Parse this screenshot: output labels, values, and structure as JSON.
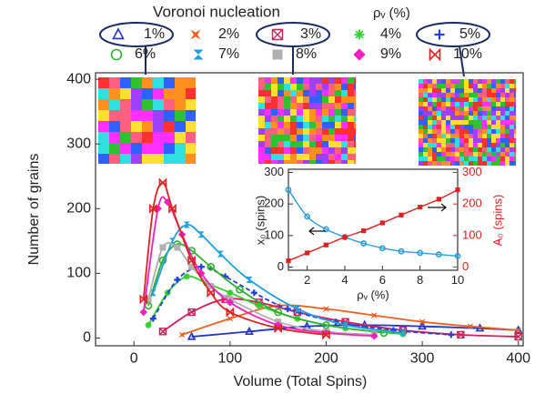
{
  "chart_data": [
    {
      "type": "line",
      "legend_title": "Voronoi nucleation",
      "legend_unit": "ρᵥ (%)",
      "x_label": "Volume (Total Spins)",
      "y_label": "Number of grains",
      "xlim": [
        -40,
        405
      ],
      "xticks": [
        0,
        100,
        200,
        300,
        400
      ],
      "ylim": [
        -12,
        410
      ],
      "yticks": [
        0,
        100,
        200,
        300,
        400
      ],
      "series": [
        {
          "name": "1%",
          "color": "#2233c8",
          "marker": "triangle",
          "x": [
            60,
            120,
            180,
            240,
            300,
            360,
            400
          ],
          "values": [
            2,
            10,
            18,
            20,
            18,
            15,
            12
          ]
        },
        {
          "name": "2%",
          "color": "#f06020",
          "marker": "star",
          "x": [
            50,
            100,
            150,
            200,
            250,
            300,
            350,
            400
          ],
          "values": [
            5,
            30,
            50,
            45,
            35,
            25,
            18,
            12
          ]
        },
        {
          "name": "3%",
          "color": "#d0205a",
          "marker": "boxx",
          "x": [
            30,
            60,
            95,
            130,
            170,
            220,
            280,
            340,
            400
          ],
          "values": [
            10,
            40,
            60,
            55,
            40,
            25,
            12,
            5,
            2
          ]
        },
        {
          "name": "4%",
          "color": "#30d030",
          "marker": "asterisk",
          "x": [
            15,
            35,
            55,
            75,
            100,
            130,
            170,
            220,
            280
          ],
          "values": [
            20,
            70,
            95,
            85,
            70,
            50,
            30,
            15,
            6
          ]
        },
        {
          "name": "5%",
          "color": "#2040e0",
          "marker": "plus",
          "dashed": true,
          "x": [
            20,
            45,
            70,
            95,
            125,
            160,
            210,
            270,
            330
          ],
          "values": [
            30,
            90,
            110,
            95,
            70,
            45,
            25,
            12,
            5
          ]
        },
        {
          "name": "6%",
          "color": "#30b030",
          "marker": "circle",
          "x": [
            15,
            30,
            45,
            60,
            80,
            110,
            150,
            200,
            260
          ],
          "values": [
            50,
            120,
            145,
            135,
            110,
            75,
            40,
            20,
            8
          ]
        },
        {
          "name": "7%",
          "color": "#20a0e0",
          "marker": "hourglass",
          "x": [
            20,
            40,
            55,
            70,
            90,
            120,
            170,
            220,
            280
          ],
          "values": [
            70,
            150,
            175,
            160,
            130,
            90,
            45,
            20,
            8
          ]
        },
        {
          "name": "8%",
          "color": "#b0b0b0",
          "marker": "square",
          "x": [
            15,
            30,
            45,
            60,
            80,
            100,
            150,
            200,
            250
          ],
          "values": [
            60,
            140,
            140,
            110,
            80,
            60,
            25,
            10,
            5
          ]
        },
        {
          "name": "9%",
          "color": "#f020c0",
          "marker": "diamond",
          "x": [
            10,
            25,
            35,
            50,
            70,
            100,
            150,
            200,
            250
          ],
          "values": [
            40,
            200,
            210,
            160,
            100,
            55,
            20,
            8,
            3
          ]
        },
        {
          "name": "10%",
          "color": "#e02020",
          "marker": "bowtie",
          "x": [
            10,
            20,
            30,
            40,
            60,
            80,
            100,
            150,
            200
          ],
          "values": [
            60,
            200,
            240,
            200,
            120,
            70,
            40,
            15,
            5
          ]
        }
      ]
    },
    {
      "type": "line",
      "x_label": "ρᵥ (%)",
      "y_label": "x₀ (spins)",
      "y2_label": "A₀ (spins)",
      "xlim": [
        1,
        10
      ],
      "xticks": [
        2,
        4,
        6,
        8,
        10
      ],
      "ylim": [
        -10,
        310
      ],
      "yticks": [
        0,
        100,
        200,
        300
      ],
      "y2lim": [
        -10,
        310
      ],
      "y2ticks": [
        0,
        100,
        200,
        300
      ],
      "series": [
        {
          "color": "#2a9ee0",
          "marker": "circle",
          "x": [
            1,
            2,
            3,
            4,
            5,
            6,
            7,
            8,
            9,
            10
          ],
          "values": [
            245,
            160,
            120,
            95,
            75,
            60,
            50,
            45,
            40,
            35
          ]
        },
        {
          "color": "#e02020",
          "marker": "square",
          "axis": "y2",
          "x": [
            1,
            2,
            3,
            4,
            5,
            6,
            7,
            8,
            9,
            10
          ],
          "values": [
            20,
            45,
            70,
            95,
            115,
            140,
            165,
            190,
            215,
            245
          ]
        }
      ]
    }
  ]
}
